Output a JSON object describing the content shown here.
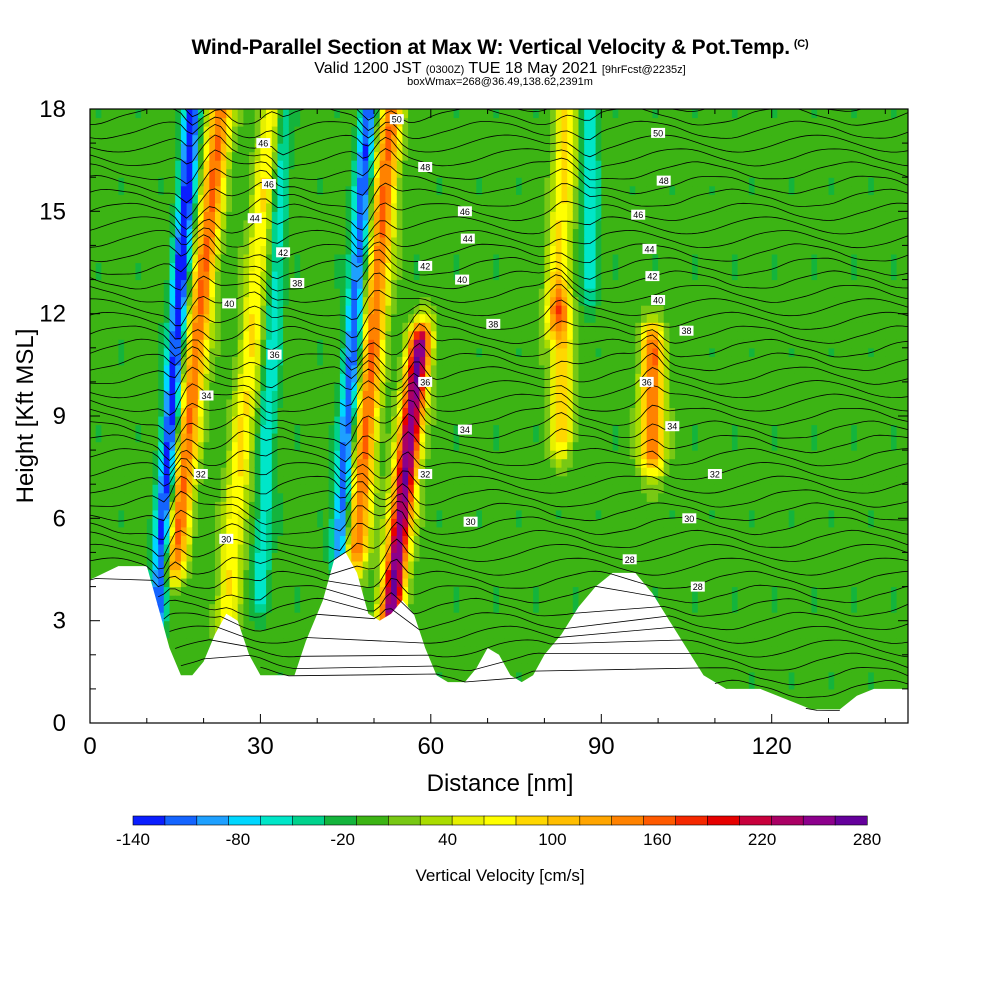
{
  "header": {
    "title_main": "Wind-Parallel Section at Max W: Vertical Velocity & Pot.Temp.",
    "title_copyright": "(C)",
    "valid_prefix": "Valid 1200 JST",
    "valid_utc": "(0300Z)",
    "valid_date": "TUE 18 May 2021",
    "forecast": "[9hrFcst@2235z]",
    "box_info": "boxWmax=268@36.49,138.62,2391m"
  },
  "chart_data": {
    "type": "heatmap",
    "title": "Wind-Parallel Section at Max W: Vertical Velocity & Pot.Temp.",
    "xlabel": "Distance [nm]",
    "ylabel": "Height [Kft MSL]",
    "xlim": [
      0,
      144
    ],
    "ylim": [
      0,
      18
    ],
    "xticks": [
      0,
      30,
      60,
      90,
      120
    ],
    "yticks": [
      0,
      3,
      6,
      9,
      12,
      15,
      18
    ],
    "colorbar": {
      "label": "Vertical Velocity [cm/s]",
      "tick_labels": [
        "-140",
        "-80",
        "-20",
        "40",
        "100",
        "160",
        "220",
        "280"
      ],
      "colors": [
        "#0a1eff",
        "#1464ff",
        "#1ea0ff",
        "#00d7ff",
        "#00e6c8",
        "#00d28c",
        "#14b43c",
        "#3cb414",
        "#78c814",
        "#aadc00",
        "#e6f000",
        "#ffff00",
        "#ffd700",
        "#ffbe00",
        "#ffa500",
        "#ff8200",
        "#ff5a00",
        "#f52800",
        "#e60000",
        "#c8003c",
        "#aa0064",
        "#8c008c",
        "#64009b"
      ]
    },
    "terrain": [
      [
        0,
        4.2
      ],
      [
        5,
        4.6
      ],
      [
        10,
        4.6
      ],
      [
        12,
        3.4
      ],
      [
        14,
        2.2
      ],
      [
        16,
        1.4
      ],
      [
        18,
        1.4
      ],
      [
        20,
        1.8
      ],
      [
        22,
        2.6
      ],
      [
        24,
        3.2
      ],
      [
        26,
        3.0
      ],
      [
        28,
        2.0
      ],
      [
        30,
        1.4
      ],
      [
        36,
        1.4
      ],
      [
        38,
        2.4
      ],
      [
        41,
        3.6
      ],
      [
        43,
        4.8
      ],
      [
        45,
        5.0
      ],
      [
        47,
        4.4
      ],
      [
        49,
        3.2
      ],
      [
        51,
        3.0
      ],
      [
        53,
        3.2
      ],
      [
        55,
        3.6
      ],
      [
        57,
        3.2
      ],
      [
        59,
        2.2
      ],
      [
        61,
        1.4
      ],
      [
        63,
        1.2
      ],
      [
        66,
        1.2
      ],
      [
        68,
        1.6
      ],
      [
        70,
        2.2
      ],
      [
        72,
        2.0
      ],
      [
        74,
        1.4
      ],
      [
        76,
        1.2
      ],
      [
        78,
        1.4
      ],
      [
        80,
        2.0
      ],
      [
        83,
        2.6
      ],
      [
        86,
        3.4
      ],
      [
        89,
        4.0
      ],
      [
        92,
        4.4
      ],
      [
        96,
        4.4
      ],
      [
        99,
        3.8
      ],
      [
        102,
        3.0
      ],
      [
        105,
        2.2
      ],
      [
        108,
        1.4
      ],
      [
        112,
        1.0
      ],
      [
        118,
        1.0
      ],
      [
        124,
        0.6
      ],
      [
        127,
        0.4
      ],
      [
        132,
        0.4
      ],
      [
        135,
        0.8
      ],
      [
        138,
        1.0
      ],
      [
        141,
        1.0
      ],
      [
        144,
        1.0
      ]
    ],
    "updrafts": [
      {
        "center_nm": 15,
        "tilt_nm": 8,
        "base": 4.8,
        "top": 18,
        "peak_cm_s": 160
      },
      {
        "center_nm": 24,
        "tilt_nm": 8,
        "base": 3.2,
        "top": 18,
        "peak_cm_s": 85
      },
      {
        "center_nm": 47,
        "tilt_nm": 6,
        "base": 5.2,
        "top": 18,
        "peak_cm_s": 160
      },
      {
        "center_nm": 53,
        "tilt_nm": 5,
        "base": 3.4,
        "top": 11,
        "peak_cm_s": 268
      },
      {
        "center_nm": 83,
        "tilt_nm": 0,
        "base": 8.5,
        "top": 12,
        "peak_cm_s": 100
      },
      {
        "center_nm": 99,
        "tilt_nm": 0,
        "base": 8.0,
        "top": 11,
        "peak_cm_s": 160
      },
      {
        "center_nm": 82,
        "tilt_nm": 2,
        "base": 12,
        "top": 18,
        "peak_cm_s": 90
      }
    ],
    "downdrafts": [
      {
        "center_nm": 12,
        "tilt_nm": 6,
        "base": 3.4,
        "top": 18,
        "peak_cm_s": -140
      },
      {
        "center_nm": 44,
        "tilt_nm": 5,
        "base": 5.2,
        "top": 18,
        "peak_cm_s": -120
      },
      {
        "center_nm": 30,
        "tilt_nm": 4,
        "base": 4.0,
        "top": 18,
        "peak_cm_s": -60
      },
      {
        "center_nm": 88,
        "tilt_nm": 0,
        "base": 13,
        "top": 18,
        "peak_cm_s": -60
      }
    ],
    "theta_label_values": [
      "50",
      "48",
      "46",
      "44",
      "42",
      "40",
      "38",
      "36",
      "34",
      "32",
      "30",
      "28"
    ],
    "theta_labels": [
      {
        "text": "30",
        "x": 24,
        "y": 5.4
      },
      {
        "text": "32",
        "x": 19.5,
        "y": 7.3
      },
      {
        "text": "34",
        "x": 20.5,
        "y": 9.6
      },
      {
        "text": "36",
        "x": 32.5,
        "y": 10.8
      },
      {
        "text": "38",
        "x": 36.5,
        "y": 12.9
      },
      {
        "text": "40",
        "x": 24.5,
        "y": 12.3
      },
      {
        "text": "42",
        "x": 34,
        "y": 13.8
      },
      {
        "text": "44",
        "x": 29,
        "y": 14.8
      },
      {
        "text": "46",
        "x": 31.5,
        "y": 15.8
      },
      {
        "text": "46",
        "x": 30.5,
        "y": 17.0
      },
      {
        "text": "50",
        "x": 54,
        "y": 17.7
      },
      {
        "text": "48",
        "x": 59,
        "y": 16.3
      },
      {
        "text": "46",
        "x": 66,
        "y": 15.0
      },
      {
        "text": "44",
        "x": 66.5,
        "y": 14.2
      },
      {
        "text": "42",
        "x": 59,
        "y": 13.4
      },
      {
        "text": "40",
        "x": 65.5,
        "y": 13.0
      },
      {
        "text": "38",
        "x": 71,
        "y": 11.7
      },
      {
        "text": "36",
        "x": 59,
        "y": 10.0
      },
      {
        "text": "34",
        "x": 66,
        "y": 8.6
      },
      {
        "text": "32",
        "x": 59,
        "y": 7.3
      },
      {
        "text": "30",
        "x": 67,
        "y": 5.9
      },
      {
        "text": "50",
        "x": 100,
        "y": 17.3
      },
      {
        "text": "48",
        "x": 101,
        "y": 15.9
      },
      {
        "text": "46",
        "x": 96.5,
        "y": 14.9
      },
      {
        "text": "44",
        "x": 98.5,
        "y": 13.9
      },
      {
        "text": "42",
        "x": 99,
        "y": 13.1
      },
      {
        "text": "40",
        "x": 100,
        "y": 12.4
      },
      {
        "text": "38",
        "x": 105,
        "y": 11.5
      },
      {
        "text": "36",
        "x": 98,
        "y": 10.0
      },
      {
        "text": "34",
        "x": 102.5,
        "y": 8.7
      },
      {
        "text": "32",
        "x": 110,
        "y": 7.3
      },
      {
        "text": "30",
        "x": 105.5,
        "y": 6.0
      },
      {
        "text": "28",
        "x": 95,
        "y": 4.8
      },
      {
        "text": "28",
        "x": 107,
        "y": 4.0
      }
    ]
  }
}
